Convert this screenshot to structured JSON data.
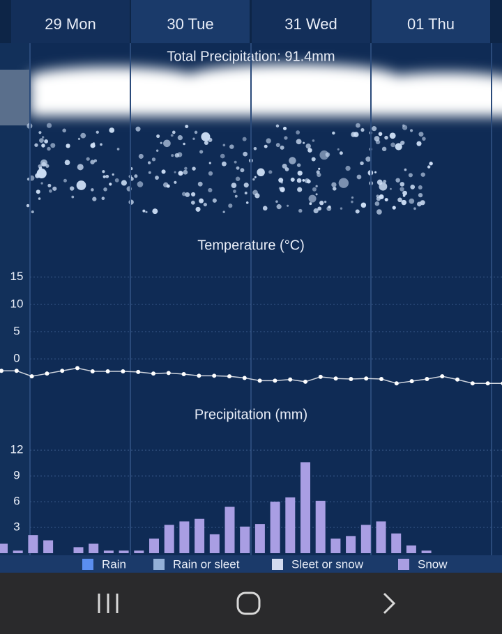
{
  "tabs": [
    "29 Mon",
    "30 Tue",
    "31 Wed",
    "01 Thu"
  ],
  "total_precipitation": "Total Precipitation: 91.4mm",
  "chart_data": [
    {
      "type": "line",
      "title": "Temperature (°C)",
      "color": "#ffffff",
      "values": [
        -2.2,
        -2.2,
        -3.2,
        -2.7,
        -2.2,
        -1.7,
        -2.3,
        -2.3,
        -2.3,
        -2.4,
        -2.7,
        -2.6,
        -2.8,
        -3.1,
        -3.1,
        -3.2,
        -3.5,
        -4.0,
        -4.0,
        -3.8,
        -4.2,
        -3.3,
        -3.6,
        -3.7,
        -3.6,
        -3.7,
        -4.5,
        -4.1,
        -3.7,
        -3.2,
        -3.8,
        -4.5,
        -4.5,
        -4.5
      ],
      "ylim": [
        -6,
        16.5
      ],
      "yticks": [
        0,
        5,
        10,
        15
      ],
      "grid": true
    },
    {
      "type": "bar",
      "title": "Precipitation (mm)",
      "color": "#a99ee3",
      "values": [
        1.1,
        0.3,
        2.1,
        1.5,
        0,
        0.7,
        1.1,
        0.3,
        0.3,
        0.3,
        1.7,
        3.3,
        3.7,
        4.0,
        2.2,
        5.4,
        3.1,
        3.4,
        6.0,
        6.5,
        10.6,
        6.1,
        1.7,
        2.0,
        3.3,
        3.7,
        2.3,
        0.9,
        0.3
      ],
      "ylim": [
        0,
        12.5
      ],
      "yticks": [
        3,
        6,
        9,
        12
      ],
      "grid": true,
      "legend": [
        {
          "name": "Rain",
          "color": "#5b8ef0"
        },
        {
          "name": "Rain or sleet",
          "color": "#93b0d8"
        },
        {
          "name": "Sleet or snow",
          "color": "#d3dbef"
        },
        {
          "name": "Snow",
          "color": "#a99ee3"
        }
      ]
    }
  ]
}
